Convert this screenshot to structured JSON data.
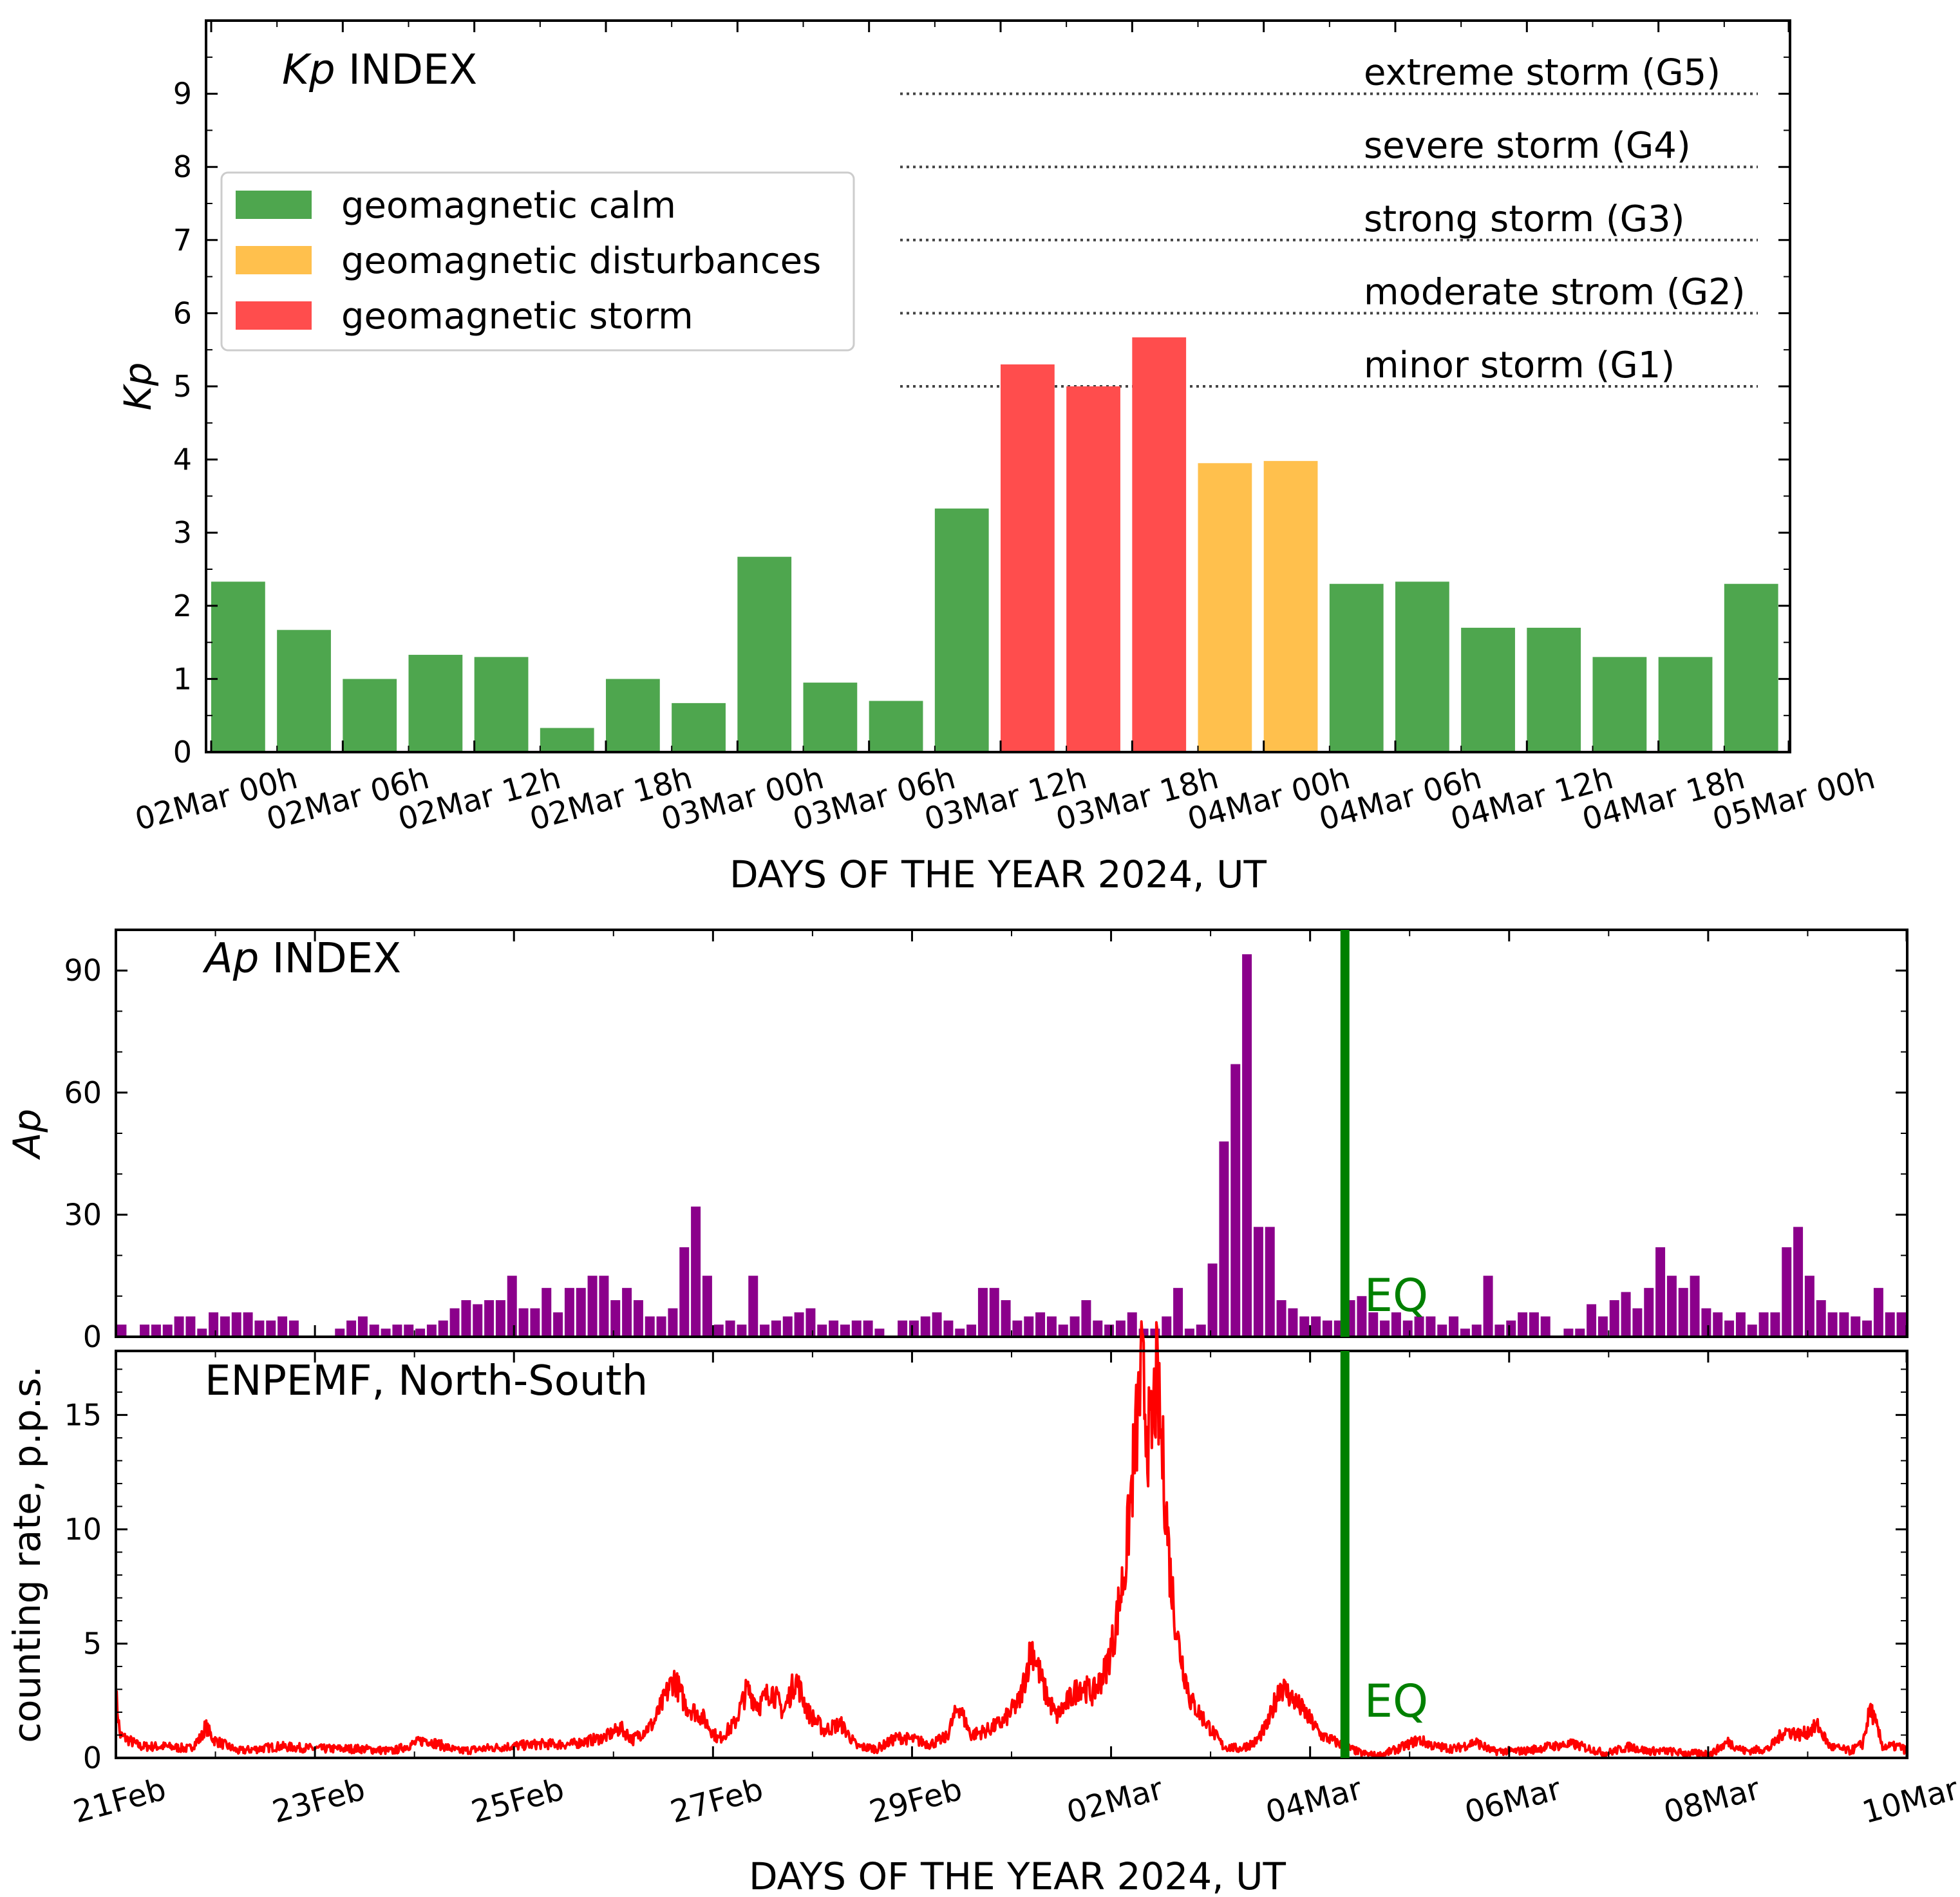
{
  "chart_data": [
    {
      "type": "bar",
      "panel": "Kp",
      "title_italic": "Kp",
      "title_rest": " INDEX",
      "ylabel": "Kp",
      "xlabel": "DAYS OF THE YEAR 2024, UT",
      "ylim": [
        0,
        10
      ],
      "yticks": [
        "0",
        "1",
        "2",
        "3",
        "4",
        "5",
        "6",
        "7",
        "8",
        "9"
      ],
      "xticks": [
        "02Mar 00h",
        "02Mar 06h",
        "02Mar 12h",
        "02Mar 18h",
        "03Mar 00h",
        "03Mar 06h",
        "03Mar 12h",
        "03Mar 18h",
        "04Mar 00h",
        "04Mar 06h",
        "04Mar 12h",
        "04Mar 18h",
        "05Mar 00h"
      ],
      "interval_hours": 3,
      "values": [
        2.33,
        1.67,
        1.0,
        1.33,
        1.3,
        0.33,
        1.0,
        0.67,
        2.67,
        0.95,
        0.7,
        3.33,
        5.3,
        5.0,
        5.67,
        3.95,
        3.98,
        2.3,
        2.33,
        1.7,
        1.7,
        1.3,
        1.3,
        2.3
      ],
      "categories": [
        "calm",
        "calm",
        "calm",
        "calm",
        "calm",
        "calm",
        "calm",
        "calm",
        "calm",
        "calm",
        "calm",
        "calm",
        "storm",
        "storm",
        "storm",
        "disturbances",
        "disturbances",
        "calm",
        "calm",
        "calm",
        "calm",
        "calm",
        "calm",
        "calm"
      ],
      "legend": {
        "position": "upper-left",
        "items": [
          {
            "key": "calm",
            "label": "geomagnetic calm",
            "color": "#4ea64e"
          },
          {
            "key": "disturbances",
            "label": "geomagnetic disturbances",
            "color": "#ffc04d"
          },
          {
            "key": "storm",
            "label": "geomagnetic storm",
            "color": "#ff4d4d"
          }
        ]
      },
      "thresholds": [
        {
          "level": 9,
          "label": "extreme storm (G5)"
        },
        {
          "level": 8,
          "label": "severe storm (G4)"
        },
        {
          "level": 7,
          "label": "strong storm (G3)"
        },
        {
          "level": 6,
          "label": "moderate strom (G2)"
        },
        {
          "level": 5,
          "label": "minor storm (G1)"
        }
      ]
    },
    {
      "type": "bar",
      "panel": "Ap",
      "title_italic": "Ap",
      "title_rest": " INDEX",
      "ylabel": "Ap",
      "ylim": [
        0,
        100
      ],
      "yticks": [
        "0",
        "30",
        "60",
        "90"
      ],
      "x_start_day": 0,
      "x_end_day": 18,
      "interval_hours": 3,
      "color": "#8b008b",
      "values": [
        3,
        0,
        3,
        3,
        3,
        5,
        5,
        2,
        6,
        5,
        6,
        6,
        4,
        4,
        5,
        4,
        0,
        0,
        0,
        2,
        4,
        5,
        3,
        2,
        3,
        3,
        2,
        3,
        4,
        7,
        9,
        8,
        9,
        9,
        15,
        7,
        7,
        12,
        6,
        12,
        12,
        15,
        15,
        9,
        12,
        9,
        5,
        5,
        7,
        22,
        32,
        15,
        3,
        4,
        3,
        15,
        3,
        4,
        5,
        6,
        7,
        3,
        4,
        3,
        4,
        4,
        2,
        0,
        4,
        4,
        5,
        6,
        4,
        2,
        3,
        12,
        12,
        9,
        4,
        5,
        6,
        5,
        3,
        5,
        9,
        4,
        3,
        4,
        6,
        2,
        2,
        5,
        12,
        2,
        3,
        18,
        48,
        67,
        94,
        27,
        27,
        9,
        7,
        5,
        5,
        4,
        4,
        9,
        10,
        6,
        4,
        6,
        4,
        5,
        5,
        3,
        5,
        2,
        3,
        15,
        3,
        4,
        6,
        6,
        5,
        0,
        2,
        2,
        8,
        5,
        9,
        11,
        7,
        12,
        22,
        15,
        12,
        15,
        7,
        6,
        4,
        6,
        3,
        6,
        6,
        22,
        27,
        15,
        9,
        6,
        6,
        5,
        4,
        12,
        6,
        6
      ],
      "eq_day": 12.35,
      "eq_label": "EQ",
      "eq_color": "#008000"
    },
    {
      "type": "line",
      "panel": "ENPEMF",
      "title": "ENPEMF, North-South",
      "ylabel": "counting rate, p.p.s.",
      "xlabel": "DAYS OF THE YEAR 2024, UT",
      "ylim": [
        0,
        17.8
      ],
      "yticks": [
        "0",
        "5",
        "10",
        "15"
      ],
      "xticks": [
        "21Feb",
        "23Feb",
        "25Feb",
        "27Feb",
        "29Feb",
        "02Mar",
        "04Mar",
        "06Mar",
        "08Mar",
        "10Mar"
      ],
      "x_start_day": 0,
      "x_end_day": 18,
      "color": "#ff0000",
      "eq_day": 12.35,
      "eq_label": "EQ",
      "eq_color": "#008000",
      "envelope": [
        [
          0.0,
          2.8
        ],
        [
          0.05,
          1.0
        ],
        [
          0.3,
          0.5
        ],
        [
          0.6,
          0.5
        ],
        [
          0.9,
          0.4
        ],
        [
          1.05,
          0.9
        ],
        [
          1.1,
          1.4
        ],
        [
          1.2,
          0.8
        ],
        [
          1.5,
          0.3
        ],
        [
          2.0,
          0.5
        ],
        [
          2.5,
          0.4
        ],
        [
          3.0,
          0.4
        ],
        [
          3.4,
          0.3
        ],
        [
          3.8,
          0.8
        ],
        [
          4.2,
          0.3
        ],
        [
          4.8,
          0.5
        ],
        [
          5.2,
          0.6
        ],
        [
          5.6,
          0.6
        ],
        [
          6.0,
          0.9
        ],
        [
          6.2,
          1.3
        ],
        [
          6.35,
          0.8
        ],
        [
          6.6,
          1.5
        ],
        [
          6.85,
          3.5
        ],
        [
          7.0,
          2.3
        ],
        [
          7.2,
          1.8
        ],
        [
          7.4,
          0.8
        ],
        [
          7.6,
          1.5
        ],
        [
          7.75,
          3.0
        ],
        [
          7.9,
          2.3
        ],
        [
          8.05,
          3.0
        ],
        [
          8.2,
          2.0
        ],
        [
          8.35,
          3.5
        ],
        [
          8.5,
          2.0
        ],
        [
          8.7,
          1.2
        ],
        [
          8.9,
          1.5
        ],
        [
          9.1,
          0.5
        ],
        [
          9.35,
          0.4
        ],
        [
          9.6,
          0.9
        ],
        [
          9.8,
          0.8
        ],
        [
          10.0,
          0.6
        ],
        [
          10.2,
          0.9
        ],
        [
          10.35,
          2.3
        ],
        [
          10.5,
          1.0
        ],
        [
          10.7,
          1.2
        ],
        [
          10.9,
          1.6
        ],
        [
          11.1,
          2.5
        ],
        [
          11.25,
          4.9
        ],
        [
          11.4,
          3.0
        ],
        [
          11.55,
          1.8
        ],
        [
          11.7,
          2.5
        ],
        [
          11.85,
          3.2
        ],
        [
          12.0,
          2.8
        ],
        [
          12.15,
          3.8
        ],
        [
          12.25,
          5.2
        ],
        [
          12.4,
          8.5
        ],
        [
          12.5,
          13.0
        ],
        [
          12.6,
          16.8
        ],
        [
          12.7,
          13.5
        ],
        [
          12.78,
          16.5
        ],
        [
          12.88,
          12.0
        ],
        [
          12.95,
          8.0
        ],
        [
          13.05,
          5.0
        ],
        [
          13.2,
          2.5
        ],
        [
          13.4,
          1.5
        ],
        [
          13.6,
          0.5
        ],
        [
          13.8,
          0.4
        ],
        [
          14.0,
          0.7
        ],
        [
          14.15,
          1.5
        ],
        [
          14.3,
          3.2
        ],
        [
          14.45,
          2.6
        ],
        [
          14.6,
          2.0
        ],
        [
          14.8,
          1.0
        ],
        [
          15.1,
          0.5
        ],
        [
          15.3,
          0.2
        ],
        [
          15.5,
          0.1
        ],
        [
          15.75,
          0.4
        ],
        [
          16.0,
          0.8
        ],
        [
          16.2,
          0.5
        ],
        [
          16.45,
          0.4
        ],
        [
          16.7,
          0.7
        ],
        [
          16.9,
          0.3
        ],
        [
          17.05,
          0.3
        ],
        [
          17.3,
          0.3
        ],
        [
          17.6,
          0.5
        ],
        [
          17.9,
          0.6
        ],
        [
          18.3,
          0.2
        ],
        [
          18.6,
          0.5
        ],
        [
          18.8,
          0.3
        ],
        [
          19.05,
          0.3
        ],
        [
          19.3,
          0.2
        ],
        [
          19.6,
          0.2
        ],
        [
          19.8,
          0.7
        ],
        [
          20.0,
          0.3
        ],
        [
          20.3,
          0.4
        ],
        [
          20.5,
          1.2
        ],
        [
          20.7,
          1.0
        ],
        [
          20.9,
          1.4
        ],
        [
          21.05,
          0.5
        ],
        [
          21.3,
          0.3
        ],
        [
          21.45,
          0.6
        ],
        [
          21.55,
          2.2
        ],
        [
          21.7,
          0.5
        ],
        [
          21.9,
          0.5
        ],
        [
          22.0,
          0.3
        ]
      ],
      "notes": "x in day index since 21Feb 00h for the lower two panels; envelope abscissa rescaled over 0-22 mapping to 21Feb-10Mar"
    }
  ]
}
